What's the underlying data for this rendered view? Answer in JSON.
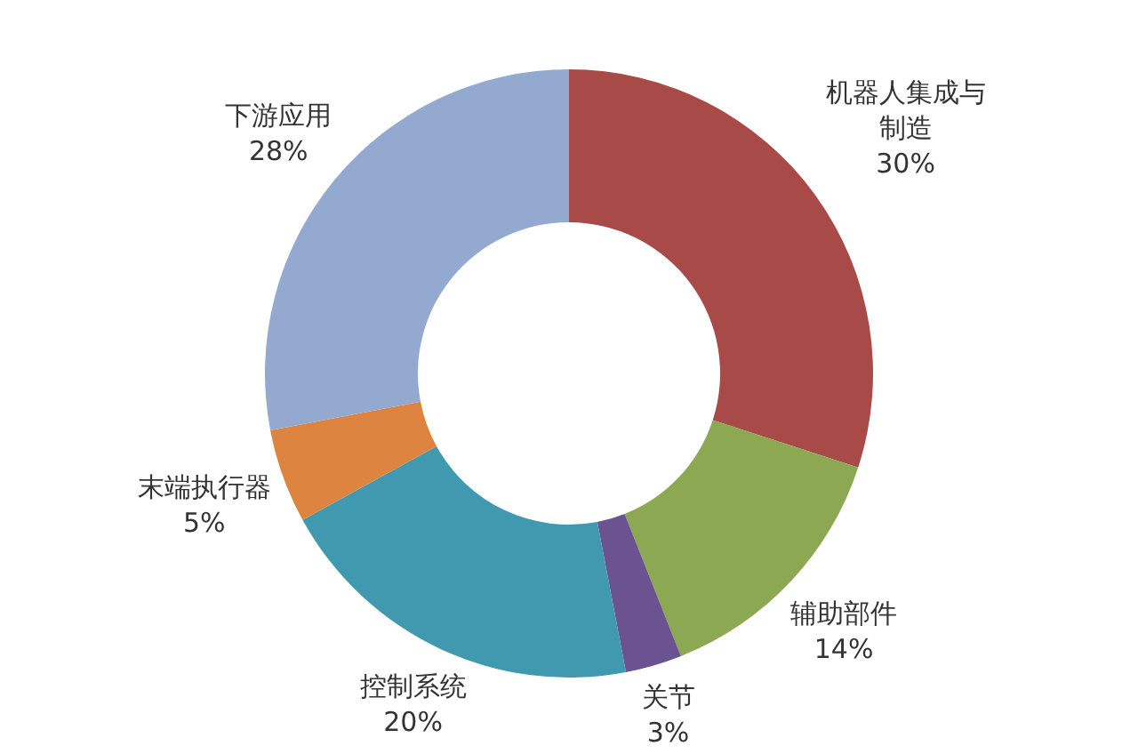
{
  "chart_data": {
    "type": "donut",
    "categories": [
      "机器人集成与制造",
      "辅助部件",
      "关节",
      "控制系统",
      "末端执行器",
      "下游应用"
    ],
    "values": [
      30,
      14,
      3,
      20,
      5,
      28
    ],
    "value_labels": [
      "30%",
      "14%",
      "3%",
      "20%",
      "5%",
      "28%"
    ],
    "colors": [
      "#a84a48",
      "#8ca852",
      "#6b5291",
      "#4199b0",
      "#dd8540",
      "#93a9d0"
    ]
  }
}
